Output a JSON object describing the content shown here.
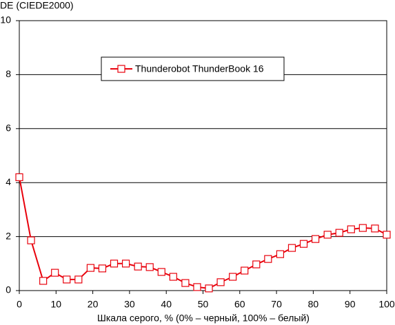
{
  "chart_data": {
    "type": "line",
    "ylabel": "DE (CIEDE2000)",
    "xlabel": "Шкала серого, % (0% – черный, 100% – белый)",
    "x": [
      0,
      3.2,
      6.5,
      9.7,
      12.9,
      16.1,
      19.4,
      22.6,
      25.8,
      29.0,
      32.3,
      35.5,
      38.7,
      41.9,
      45.2,
      48.4,
      51.6,
      54.8,
      58.1,
      61.3,
      64.5,
      67.7,
      71.0,
      74.2,
      77.4,
      80.6,
      83.9,
      87.1,
      90.3,
      93.5,
      96.8,
      100
    ],
    "series": [
      {
        "name": "Thunderobot ThunderBook 16",
        "color": "#e8000b",
        "values": [
          4.2,
          1.86,
          0.36,
          0.66,
          0.41,
          0.41,
          0.84,
          0.82,
          1.0,
          1.0,
          0.89,
          0.87,
          0.69,
          0.51,
          0.28,
          0.13,
          0.08,
          0.31,
          0.51,
          0.74,
          0.97,
          1.17,
          1.35,
          1.58,
          1.73,
          1.91,
          2.07,
          2.14,
          2.27,
          2.32,
          2.3,
          2.07
        ]
      }
    ],
    "xlim": [
      0,
      100
    ],
    "xticks": [
      0,
      10,
      20,
      30,
      40,
      50,
      60,
      70,
      80,
      90,
      100
    ],
    "ylim": [
      0,
      10
    ],
    "yticks": [
      0,
      2,
      4,
      6,
      8,
      10
    ],
    "grid": true
  }
}
